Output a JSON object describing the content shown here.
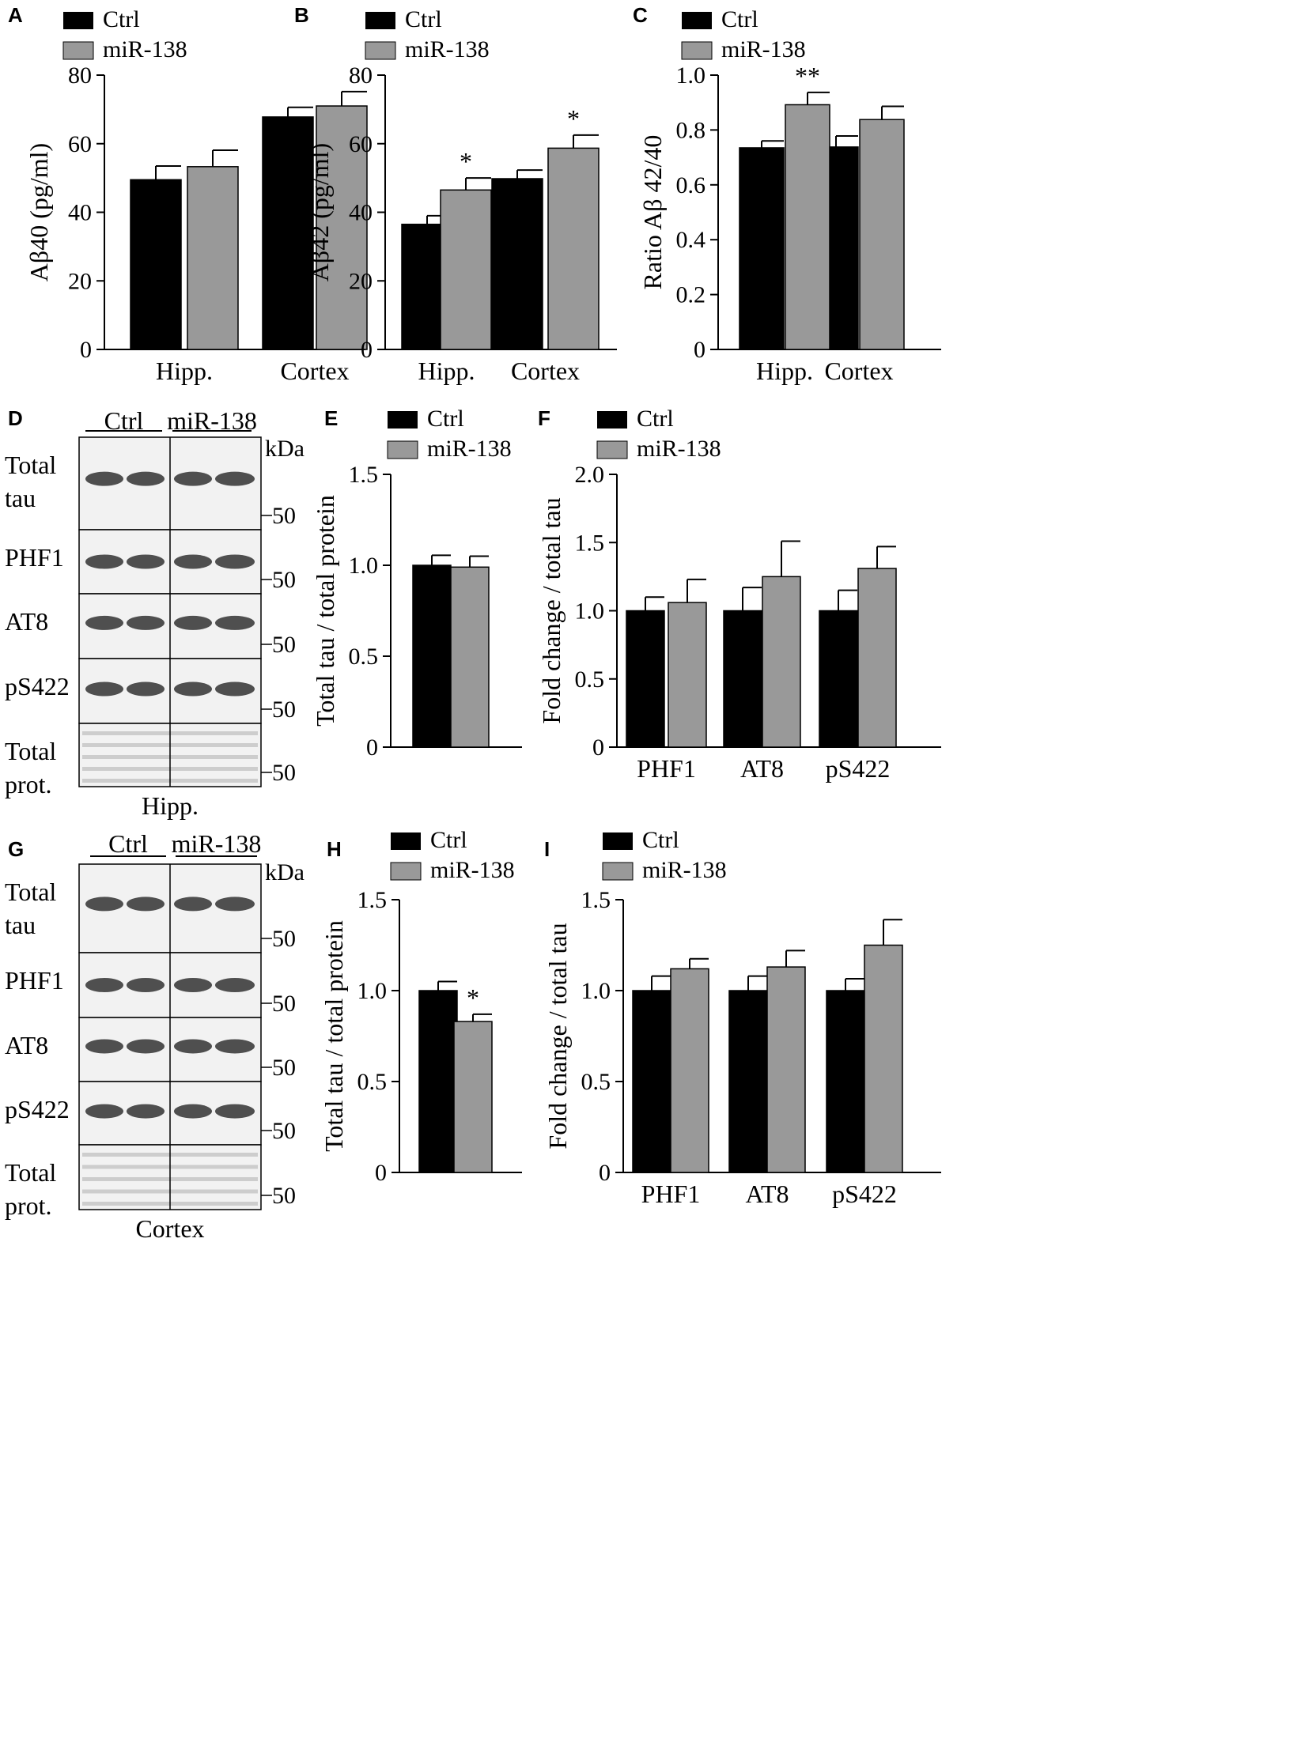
{
  "colors": {
    "ctrl": "#000000",
    "mir": "#999999",
    "axis": "#000000",
    "blot_bg": "#f2f2f2",
    "blot_band": "#333333"
  },
  "legend": {
    "ctrl": "Ctrl",
    "mir": "miR-138"
  },
  "panel_letters": [
    "A",
    "B",
    "C",
    "D",
    "E",
    "F",
    "G",
    "H",
    "I"
  ],
  "chart_data": [
    {
      "panel": "A",
      "type": "bar",
      "categories": [
        "Hipp.",
        "Cortex"
      ],
      "series": [
        {
          "name": "Ctrl",
          "values": [
            49.5,
            67.8
          ],
          "errors": [
            4.0,
            2.8
          ]
        },
        {
          "name": "miR-138",
          "values": [
            53.3,
            71.0
          ],
          "errors": [
            4.8,
            4.2
          ]
        }
      ],
      "ylabel": "Aβ40 (pg/ml)",
      "ylim": [
        0,
        80
      ],
      "yticks": [
        "0",
        "20",
        "40",
        "60",
        "80"
      ],
      "annotations": [],
      "legend": "top-left",
      "grid": false
    },
    {
      "panel": "B",
      "type": "bar",
      "categories": [
        "Hipp.",
        "Cortex"
      ],
      "series": [
        {
          "name": "Ctrl",
          "values": [
            36.5,
            49.8
          ],
          "errors": [
            2.5,
            2.5
          ]
        },
        {
          "name": "miR-138",
          "values": [
            46.5,
            58.7
          ],
          "errors": [
            3.5,
            3.8
          ]
        }
      ],
      "ylabel": "Aβ42 (pg/ml)",
      "ylim": [
        0,
        80
      ],
      "yticks": [
        "0",
        "20",
        "40",
        "60",
        "80"
      ],
      "annotations": [
        {
          "text": "*",
          "category": 0,
          "series": 1
        },
        {
          "text": "*",
          "category": 1,
          "series": 1
        }
      ],
      "legend": "top-left",
      "grid": false
    },
    {
      "panel": "C",
      "type": "bar",
      "categories": [
        "Hipp.",
        "Cortex"
      ],
      "series": [
        {
          "name": "Ctrl",
          "values": [
            0.735,
            0.738
          ],
          "errors": [
            0.025,
            0.04
          ]
        },
        {
          "name": "miR-138",
          "values": [
            0.892,
            0.838
          ],
          "errors": [
            0.045,
            0.048
          ]
        }
      ],
      "ylabel": "Ratio Aβ 42/40",
      "ylim": [
        0,
        1.0
      ],
      "yticks": [
        "0",
        "0.2",
        "0.4",
        "0.6",
        "0.8",
        "1.0"
      ],
      "annotations": [
        {
          "text": "**",
          "category": 0,
          "series": 1
        }
      ],
      "legend": "top-left",
      "grid": false
    },
    {
      "panel": "E",
      "type": "bar",
      "categories": [
        ""
      ],
      "series": [
        {
          "name": "Ctrl",
          "values": [
            1.0
          ],
          "errors": [
            0.055
          ]
        },
        {
          "name": "miR-138",
          "values": [
            0.99
          ],
          "errors": [
            0.06
          ]
        }
      ],
      "ylabel": "Total tau / total protein",
      "ylim": [
        0,
        1.5
      ],
      "yticks": [
        "0",
        "0.5",
        "1.0",
        "1.5"
      ],
      "annotations": [],
      "legend": "top-left",
      "grid": false
    },
    {
      "panel": "F",
      "type": "bar",
      "categories": [
        "PHF1",
        "AT8",
        "pS422"
      ],
      "series": [
        {
          "name": "Ctrl",
          "values": [
            1.0,
            1.0,
            1.0
          ],
          "errors": [
            0.1,
            0.17,
            0.15
          ]
        },
        {
          "name": "miR-138",
          "values": [
            1.06,
            1.25,
            1.31
          ],
          "errors": [
            0.17,
            0.26,
            0.16
          ]
        }
      ],
      "ylabel": "Fold change / total tau",
      "ylim": [
        0,
        2.0
      ],
      "yticks": [
        "0",
        "0.5",
        "1.0",
        "1.5",
        "2.0"
      ],
      "annotations": [],
      "legend": "top-left",
      "grid": false
    },
    {
      "panel": "H",
      "type": "bar",
      "categories": [
        ""
      ],
      "series": [
        {
          "name": "Ctrl",
          "values": [
            1.0
          ],
          "errors": [
            0.05
          ]
        },
        {
          "name": "miR-138",
          "values": [
            0.83
          ],
          "errors": [
            0.04
          ]
        }
      ],
      "ylabel": "Total tau / total protein",
      "ylim": [
        0,
        1.5
      ],
      "yticks": [
        "0",
        "0.5",
        "1.0",
        "1.5"
      ],
      "annotations": [
        {
          "text": "*",
          "category": 0,
          "series": 1
        }
      ],
      "legend": "top-left",
      "grid": false
    },
    {
      "panel": "I",
      "type": "bar",
      "categories": [
        "PHF1",
        "AT8",
        "pS422"
      ],
      "series": [
        {
          "name": "Ctrl",
          "values": [
            1.0,
            1.0,
            1.0
          ],
          "errors": [
            0.08,
            0.08,
            0.065
          ]
        },
        {
          "name": "miR-138",
          "values": [
            1.12,
            1.13,
            1.25
          ],
          "errors": [
            0.055,
            0.09,
            0.14
          ]
        }
      ],
      "ylabel": "Fold change / total tau",
      "ylim": [
        0,
        1.5
      ],
      "yticks": [
        "0",
        "0.5",
        "1.0",
        "1.5"
      ],
      "annotations": [],
      "legend": "top-left",
      "grid": false
    }
  ],
  "blots": [
    {
      "panel": "D",
      "group_labels": [
        "Ctrl",
        "miR-138"
      ],
      "unit": "kDa",
      "rows": [
        {
          "label": "Total tau",
          "marker": "50"
        },
        {
          "label": "PHF1",
          "marker": "50"
        },
        {
          "label": "AT8",
          "marker": "50"
        },
        {
          "label": "pS422",
          "marker": "50"
        },
        {
          "label": "Total prot.",
          "marker": "50"
        }
      ],
      "tissue": "Hipp."
    },
    {
      "panel": "G",
      "group_labels": [
        "Ctrl",
        "miR-138"
      ],
      "unit": "kDa",
      "rows": [
        {
          "label": "Total tau",
          "marker": "50"
        },
        {
          "label": "PHF1",
          "marker": "50"
        },
        {
          "label": "AT8",
          "marker": "50"
        },
        {
          "label": "pS422",
          "marker": "50"
        },
        {
          "label": "Total prot.",
          "marker": "50"
        }
      ],
      "tissue": "Cortex"
    }
  ]
}
